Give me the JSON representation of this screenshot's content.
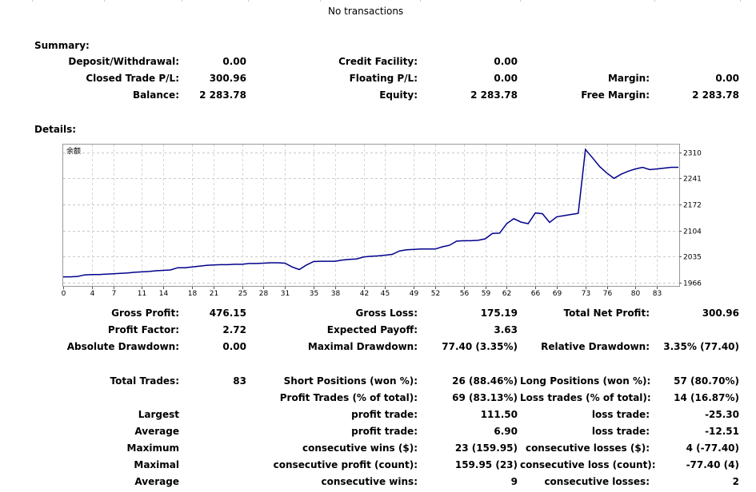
{
  "header": {
    "no_transactions": "No transactions"
  },
  "summary": {
    "title": "Summary:",
    "deposit_label": "Deposit/Withdrawal:",
    "deposit_value": "0.00",
    "credit_label": "Credit Facility:",
    "credit_value": "0.00",
    "closed_pl_label": "Closed Trade P/L:",
    "closed_pl_value": "300.96",
    "floating_label": "Floating P/L:",
    "floating_value": "0.00",
    "margin_label": "Margin:",
    "margin_value": "0.00",
    "balance_label": "Balance:",
    "balance_value": "2 283.78",
    "equity_label": "Equity:",
    "equity_value": "2 283.78",
    "free_margin_label": "Free Margin:",
    "free_margin_value": "2 283.78"
  },
  "details": {
    "title": "Details:"
  },
  "chart_data": {
    "type": "line",
    "series_label": "余额",
    "x_ticks": [
      0,
      4,
      7,
      11,
      14,
      18,
      21,
      25,
      28,
      31,
      35,
      38,
      42,
      45,
      49,
      52,
      56,
      59,
      62,
      66,
      69,
      73,
      76,
      80,
      83
    ],
    "y_ticks": [
      1966,
      2035,
      2104,
      2172,
      2241,
      2310
    ],
    "xlim": [
      0,
      86
    ],
    "ylim": [
      1958,
      2330
    ],
    "grid": true,
    "line_color": "#00008b",
    "x": [
      0,
      1,
      2,
      3,
      4,
      5,
      6,
      7,
      8,
      9,
      10,
      11,
      12,
      13,
      14,
      15,
      16,
      17,
      18,
      19,
      20,
      21,
      22,
      23,
      24,
      25,
      26,
      27,
      28,
      29,
      30,
      31,
      32,
      33,
      34,
      35,
      36,
      37,
      38,
      39,
      40,
      41,
      42,
      43,
      44,
      45,
      46,
      47,
      48,
      49,
      50,
      51,
      52,
      53,
      54,
      55,
      56,
      57,
      58,
      59,
      60,
      61,
      62,
      63,
      64,
      65,
      66,
      67,
      68,
      69,
      70,
      71,
      72,
      73,
      74,
      75,
      76,
      77,
      78,
      79,
      80,
      81,
      82,
      83,
      84,
      85,
      86
    ],
    "y": [
      1982,
      1982,
      1983,
      1987,
      1988,
      1988,
      1989,
      1990,
      1991,
      1992,
      1994,
      1995,
      1996,
      1998,
      1999,
      2000,
      2006,
      2006,
      2008,
      2010,
      2012,
      2013,
      2014,
      2014,
      2015,
      2015,
      2017,
      2017,
      2018,
      2019,
      2019,
      2018,
      2008,
      2001,
      2013,
      2022,
      2023,
      2023,
      2023,
      2026,
      2028,
      2029,
      2034,
      2036,
      2037,
      2039,
      2041,
      2050,
      2053,
      2054,
      2055,
      2055,
      2055,
      2061,
      2065,
      2076,
      2077,
      2077,
      2078,
      2082,
      2096,
      2097,
      2122,
      2135,
      2126,
      2122,
      2150,
      2148,
      2125,
      2140,
      2143,
      2146,
      2149,
      2317,
      2295,
      2272,
      2255,
      2241,
      2252,
      2260,
      2266,
      2270,
      2264,
      2266,
      2268,
      2270,
      2270
    ]
  },
  "stats": {
    "gross_profit_label": "Gross Profit:",
    "gross_profit_value": "476.15",
    "gross_loss_label": "Gross Loss:",
    "gross_loss_value": "175.19",
    "total_net_profit_label": "Total Net Profit:",
    "total_net_profit_value": "300.96",
    "profit_factor_label": "Profit Factor:",
    "profit_factor_value": "2.72",
    "expected_payoff_label": "Expected Payoff:",
    "expected_payoff_value": "3.63",
    "abs_drawdown_label": "Absolute Drawdown:",
    "abs_drawdown_value": "0.00",
    "max_drawdown_label": "Maximal Drawdown:",
    "max_drawdown_value": "77.40 (3.35%)",
    "rel_drawdown_label": "Relative Drawdown:",
    "rel_drawdown_value": "3.35% (77.40)",
    "total_trades_label": "Total Trades:",
    "total_trades_value": "83",
    "short_pos_label": "Short Positions (won %):",
    "short_pos_value": "26 (88.46%)",
    "long_pos_label": "Long Positions (won %):",
    "long_pos_value": "57 (80.70%)",
    "profit_trades_label": "Profit Trades (% of total):",
    "profit_trades_value": "69 (83.13%)",
    "loss_trades_label": "Loss trades (% of total):",
    "loss_trades_value": "14 (16.87%)",
    "largest_label": "Largest",
    "largest_profit_label": "profit trade:",
    "largest_profit_value": "111.50",
    "largest_loss_label": "loss trade:",
    "largest_loss_value": "-25.30",
    "average_label": "Average",
    "average_profit_label": "profit trade:",
    "average_profit_value": "6.90",
    "average_loss_label": "loss trade:",
    "average_loss_value": "-12.51",
    "maximum_label": "Maximum",
    "max_cons_wins_label": "consecutive wins ($):",
    "max_cons_wins_value": "23 (159.95)",
    "max_cons_losses_label": "consecutive losses ($):",
    "max_cons_losses_value": "4 (-77.40)",
    "maximal_label": "Maximal",
    "maximal_cons_profit_label": "consecutive profit (count):",
    "maximal_cons_profit_value": "159.95 (23)",
    "maximal_cons_loss_label": "consecutive loss (count):",
    "maximal_cons_loss_value": "-77.40 (4)",
    "average2_label": "Average",
    "avg_cons_wins_label": "consecutive wins:",
    "avg_cons_wins_value": "9",
    "avg_cons_losses_label": "consecutive losses:",
    "avg_cons_losses_value": "2"
  }
}
